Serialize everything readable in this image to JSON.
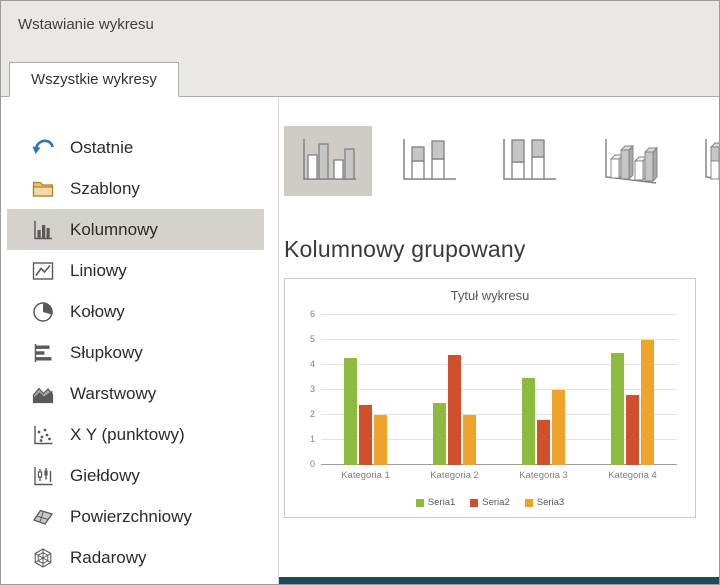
{
  "dialog": {
    "title": "Wstawianie wykresu"
  },
  "tabs": [
    {
      "label": "Wszystkie wykresy",
      "active": true
    }
  ],
  "sidebar": {
    "items": [
      {
        "label": "Ostatnie",
        "icon": "recent-undo-arrow-icon",
        "selected": false
      },
      {
        "label": "Szablony",
        "icon": "templates-folder-icon",
        "selected": false
      },
      {
        "label": "Kolumnowy",
        "icon": "column-chart-icon",
        "selected": true
      },
      {
        "label": "Liniowy",
        "icon": "line-chart-icon",
        "selected": false
      },
      {
        "label": "Kołowy",
        "icon": "pie-chart-icon",
        "selected": false
      },
      {
        "label": "Słupkowy",
        "icon": "bar-chart-icon",
        "selected": false
      },
      {
        "label": "Warstwowy",
        "icon": "area-chart-icon",
        "selected": false
      },
      {
        "label": "X Y (punktowy)",
        "icon": "scatter-chart-icon",
        "selected": false
      },
      {
        "label": "Giełdowy",
        "icon": "stock-chart-icon",
        "selected": false
      },
      {
        "label": "Powierzchniowy",
        "icon": "surface-chart-icon",
        "selected": false
      },
      {
        "label": "Radarowy",
        "icon": "radar-chart-icon",
        "selected": false
      }
    ]
  },
  "subtypes": {
    "heading": "Kolumnowy grupowany",
    "thumbnails": [
      {
        "name": "clustered-column",
        "selected": true
      },
      {
        "name": "stacked-column",
        "selected": false
      },
      {
        "name": "100-percent-stacked-column",
        "selected": false
      },
      {
        "name": "3d-clustered-column",
        "selected": false
      },
      {
        "name": "3d-stacked-column",
        "selected": false
      }
    ]
  },
  "chart_data": {
    "type": "bar",
    "title": "Tytuł wykresu",
    "categories": [
      "Kategoria 1",
      "Kategoria 2",
      "Kategoria 3",
      "Kategoria 4"
    ],
    "series": [
      {
        "name": "Seria1",
        "color": "#8CBB40",
        "values": [
          4.3,
          2.5,
          3.5,
          4.5
        ]
      },
      {
        "name": "Seria2",
        "color": "#D0502B",
        "values": [
          2.4,
          4.4,
          1.8,
          2.8
        ]
      },
      {
        "name": "Seria3",
        "color": "#EEA32B",
        "values": [
          2,
          2,
          3,
          5
        ]
      }
    ],
    "ylim": [
      0,
      6
    ],
    "ytick_step": 1,
    "grid": true,
    "legend_position": "bottom"
  },
  "colors": {
    "selection_highlight": "#D5D1CD",
    "thumb_selected": "#CFCCC8",
    "titlebar_bg": "#EAE7E4",
    "accent_blue": "#2E75B6"
  }
}
